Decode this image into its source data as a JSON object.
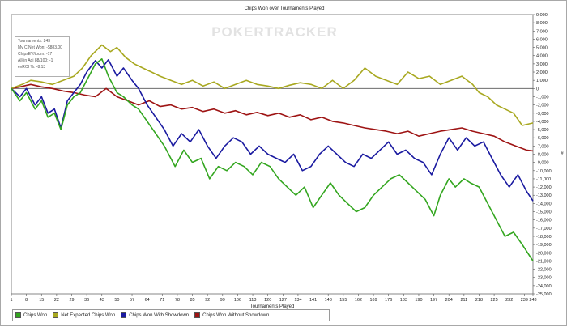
{
  "chart_data": {
    "type": "line",
    "title": "Chips Won over Tournaments Played",
    "xlabel": "Tournaments Played",
    "ylabel": "#",
    "watermark": "POKERTRACKER",
    "xlim": [
      1,
      243
    ],
    "ylim": [
      -25000,
      9000
    ],
    "x_ticks": [
      1,
      8,
      15,
      22,
      29,
      36,
      43,
      50,
      57,
      64,
      71,
      78,
      85,
      92,
      99,
      106,
      113,
      120,
      127,
      134,
      141,
      148,
      155,
      162,
      169,
      176,
      183,
      190,
      197,
      204,
      211,
      218,
      225,
      232,
      239,
      243
    ],
    "y_ticks": [
      9000,
      8000,
      7000,
      6000,
      5000,
      4000,
      3000,
      2000,
      1000,
      0,
      -1000,
      -2000,
      -3000,
      -4000,
      -5000,
      -6000,
      -7000,
      -8000,
      -9000,
      -10000,
      -11000,
      -12000,
      -13000,
      -14000,
      -15000,
      -16000,
      -17000,
      -18000,
      -19000,
      -20000,
      -21000,
      -22000,
      -23000,
      -24000,
      -25000
    ],
    "y_tick_labels": [
      "9,000",
      "8,000",
      "7,000",
      "6,000",
      "5,000",
      "4,000",
      "3,000",
      "2,000",
      "1,000",
      "0",
      "-1,000",
      "-2,000",
      "-3,000",
      "-4,000",
      "-5,000",
      "-6,000",
      "-7,000",
      "-8,000",
      "-9,000",
      "-10,000",
      "-11,000",
      "-12,000",
      "-13,000",
      "-14,000",
      "-15,000",
      "-16,000",
      "-17,000",
      "-18,000",
      "-19,000",
      "-20,000",
      "-21,000",
      "-22,000",
      "-23,000",
      "-24,000",
      "-25,000"
    ],
    "grid": false,
    "legend_position": "bottom-left",
    "series": [
      {
        "name": "Chips Won",
        "color": "#33a61f",
        "points": [
          [
            1,
            0
          ],
          [
            5,
            -1500
          ],
          [
            8,
            -500
          ],
          [
            12,
            -2500
          ],
          [
            15,
            -1500
          ],
          [
            18,
            -3500
          ],
          [
            21,
            -3000
          ],
          [
            24,
            -5000
          ],
          [
            27,
            -2000
          ],
          [
            30,
            -1000
          ],
          [
            33,
            -500
          ],
          [
            36,
            1000
          ],
          [
            40,
            3000
          ],
          [
            43,
            3600
          ],
          [
            46,
            1500
          ],
          [
            50,
            -500
          ],
          [
            53,
            -1000
          ],
          [
            57,
            -2000
          ],
          [
            60,
            -2500
          ],
          [
            64,
            -4000
          ],
          [
            68,
            -5500
          ],
          [
            72,
            -7000
          ],
          [
            77,
            -9500
          ],
          [
            81,
            -7500
          ],
          [
            85,
            -9000
          ],
          [
            89,
            -8500
          ],
          [
            93,
            -11000
          ],
          [
            97,
            -9500
          ],
          [
            101,
            -10000
          ],
          [
            105,
            -9000
          ],
          [
            109,
            -9500
          ],
          [
            113,
            -10500
          ],
          [
            117,
            -9000
          ],
          [
            121,
            -9500
          ],
          [
            125,
            -11000
          ],
          [
            129,
            -12000
          ],
          [
            133,
            -13000
          ],
          [
            137,
            -12000
          ],
          [
            141,
            -14500
          ],
          [
            145,
            -13000
          ],
          [
            149,
            -11500
          ],
          [
            153,
            -13000
          ],
          [
            157,
            -14000
          ],
          [
            161,
            -15000
          ],
          [
            165,
            -14500
          ],
          [
            169,
            -13000
          ],
          [
            173,
            -12000
          ],
          [
            177,
            -11000
          ],
          [
            181,
            -10500
          ],
          [
            185,
            -11500
          ],
          [
            189,
            -12500
          ],
          [
            193,
            -13500
          ],
          [
            197,
            -15500
          ],
          [
            200,
            -13000
          ],
          [
            204,
            -11000
          ],
          [
            207,
            -12000
          ],
          [
            211,
            -11000
          ],
          [
            214,
            -11500
          ],
          [
            218,
            -12000
          ],
          [
            222,
            -14000
          ],
          [
            226,
            -16000
          ],
          [
            230,
            -18000
          ],
          [
            234,
            -17500
          ],
          [
            238,
            -19000
          ],
          [
            243,
            -21000
          ]
        ]
      },
      {
        "name": "Net Expected Chips Won",
        "color": "#a8a820",
        "points": [
          [
            1,
            0
          ],
          [
            6,
            500
          ],
          [
            10,
            1000
          ],
          [
            15,
            800
          ],
          [
            20,
            500
          ],
          [
            25,
            1000
          ],
          [
            30,
            1500
          ],
          [
            34,
            2500
          ],
          [
            38,
            4000
          ],
          [
            43,
            5300
          ],
          [
            47,
            4500
          ],
          [
            50,
            5000
          ],
          [
            54,
            3800
          ],
          [
            58,
            3000
          ],
          [
            62,
            2500
          ],
          [
            66,
            2000
          ],
          [
            70,
            1500
          ],
          [
            75,
            1000
          ],
          [
            80,
            500
          ],
          [
            85,
            1000
          ],
          [
            90,
            300
          ],
          [
            95,
            800
          ],
          [
            100,
            0
          ],
          [
            105,
            500
          ],
          [
            110,
            1000
          ],
          [
            115,
            500
          ],
          [
            120,
            300
          ],
          [
            125,
            0
          ],
          [
            130,
            400
          ],
          [
            135,
            700
          ],
          [
            140,
            500
          ],
          [
            145,
            0
          ],
          [
            150,
            1000
          ],
          [
            155,
            0
          ],
          [
            160,
            1000
          ],
          [
            165,
            2500
          ],
          [
            170,
            1500
          ],
          [
            175,
            1000
          ],
          [
            180,
            500
          ],
          [
            185,
            2000
          ],
          [
            190,
            1200
          ],
          [
            195,
            1500
          ],
          [
            200,
            500
          ],
          [
            205,
            1000
          ],
          [
            210,
            1500
          ],
          [
            215,
            500
          ],
          [
            218,
            -500
          ],
          [
            222,
            -1000
          ],
          [
            226,
            -2000
          ],
          [
            230,
            -2500
          ],
          [
            234,
            -3000
          ],
          [
            238,
            -4500
          ],
          [
            243,
            -4200
          ]
        ]
      },
      {
        "name": "Chips Won With Showdown",
        "color": "#1a1aa0",
        "points": [
          [
            1,
            0
          ],
          [
            5,
            -1000
          ],
          [
            8,
            0
          ],
          [
            12,
            -2000
          ],
          [
            15,
            -1000
          ],
          [
            18,
            -3000
          ],
          [
            21,
            -2500
          ],
          [
            24,
            -4800
          ],
          [
            27,
            -1500
          ],
          [
            30,
            -500
          ],
          [
            33,
            500
          ],
          [
            36,
            2000
          ],
          [
            40,
            3400
          ],
          [
            43,
            2500
          ],
          [
            46,
            3500
          ],
          [
            50,
            1500
          ],
          [
            53,
            2500
          ],
          [
            57,
            1000
          ],
          [
            60,
            0
          ],
          [
            64,
            -2000
          ],
          [
            68,
            -3500
          ],
          [
            72,
            -5000
          ],
          [
            76,
            -7000
          ],
          [
            80,
            -5500
          ],
          [
            84,
            -6500
          ],
          [
            88,
            -5000
          ],
          [
            92,
            -7000
          ],
          [
            96,
            -8500
          ],
          [
            100,
            -7000
          ],
          [
            104,
            -6000
          ],
          [
            108,
            -6500
          ],
          [
            112,
            -8000
          ],
          [
            116,
            -7000
          ],
          [
            120,
            -8000
          ],
          [
            124,
            -8500
          ],
          [
            128,
            -9000
          ],
          [
            132,
            -8000
          ],
          [
            136,
            -10000
          ],
          [
            140,
            -9500
          ],
          [
            144,
            -8000
          ],
          [
            148,
            -7000
          ],
          [
            152,
            -8000
          ],
          [
            156,
            -9000
          ],
          [
            160,
            -9500
          ],
          [
            164,
            -8000
          ],
          [
            168,
            -8500
          ],
          [
            172,
            -7500
          ],
          [
            176,
            -6500
          ],
          [
            180,
            -8000
          ],
          [
            184,
            -7500
          ],
          [
            188,
            -8500
          ],
          [
            192,
            -9000
          ],
          [
            196,
            -10500
          ],
          [
            200,
            -8000
          ],
          [
            204,
            -6000
          ],
          [
            208,
            -7500
          ],
          [
            212,
            -6000
          ],
          [
            216,
            -7000
          ],
          [
            220,
            -6500
          ],
          [
            224,
            -8500
          ],
          [
            228,
            -10500
          ],
          [
            232,
            -12000
          ],
          [
            236,
            -10500
          ],
          [
            240,
            -12500
          ],
          [
            243,
            -13700
          ]
        ]
      },
      {
        "name": "Chips Won Without Showdown",
        "color": "#9e1414",
        "points": [
          [
            1,
            0
          ],
          [
            5,
            200
          ],
          [
            10,
            500
          ],
          [
            15,
            200
          ],
          [
            20,
            0
          ],
          [
            25,
            -300
          ],
          [
            30,
            -500
          ],
          [
            35,
            -800
          ],
          [
            40,
            -1000
          ],
          [
            45,
            0
          ],
          [
            50,
            -1000
          ],
          [
            55,
            -1500
          ],
          [
            60,
            -2000
          ],
          [
            65,
            -1500
          ],
          [
            70,
            -2200
          ],
          [
            75,
            -2000
          ],
          [
            80,
            -2500
          ],
          [
            85,
            -2300
          ],
          [
            90,
            -2800
          ],
          [
            95,
            -2500
          ],
          [
            100,
            -3000
          ],
          [
            105,
            -2700
          ],
          [
            110,
            -3200
          ],
          [
            115,
            -2900
          ],
          [
            120,
            -3300
          ],
          [
            125,
            -3000
          ],
          [
            130,
            -3500
          ],
          [
            135,
            -3200
          ],
          [
            140,
            -3800
          ],
          [
            145,
            -3500
          ],
          [
            150,
            -4000
          ],
          [
            155,
            -4200
          ],
          [
            160,
            -4500
          ],
          [
            165,
            -4800
          ],
          [
            170,
            -5000
          ],
          [
            175,
            -5200
          ],
          [
            180,
            -5500
          ],
          [
            185,
            -5200
          ],
          [
            190,
            -5800
          ],
          [
            195,
            -5500
          ],
          [
            200,
            -5200
          ],
          [
            205,
            -5000
          ],
          [
            210,
            -4800
          ],
          [
            215,
            -5200
          ],
          [
            220,
            -5500
          ],
          [
            225,
            -5800
          ],
          [
            230,
            -6500
          ],
          [
            235,
            -7000
          ],
          [
            240,
            -7500
          ],
          [
            243,
            -7600
          ]
        ]
      }
    ]
  },
  "stats": {
    "tournaments": "Tournaments: 243",
    "net_won": "My C Net Won: -$883.00",
    "chips_ev": "ChipsEV/tourn: -17",
    "all_in_adj": "All-in Adj 88/100: -1",
    "evroi": "evROI %: -8.13"
  }
}
